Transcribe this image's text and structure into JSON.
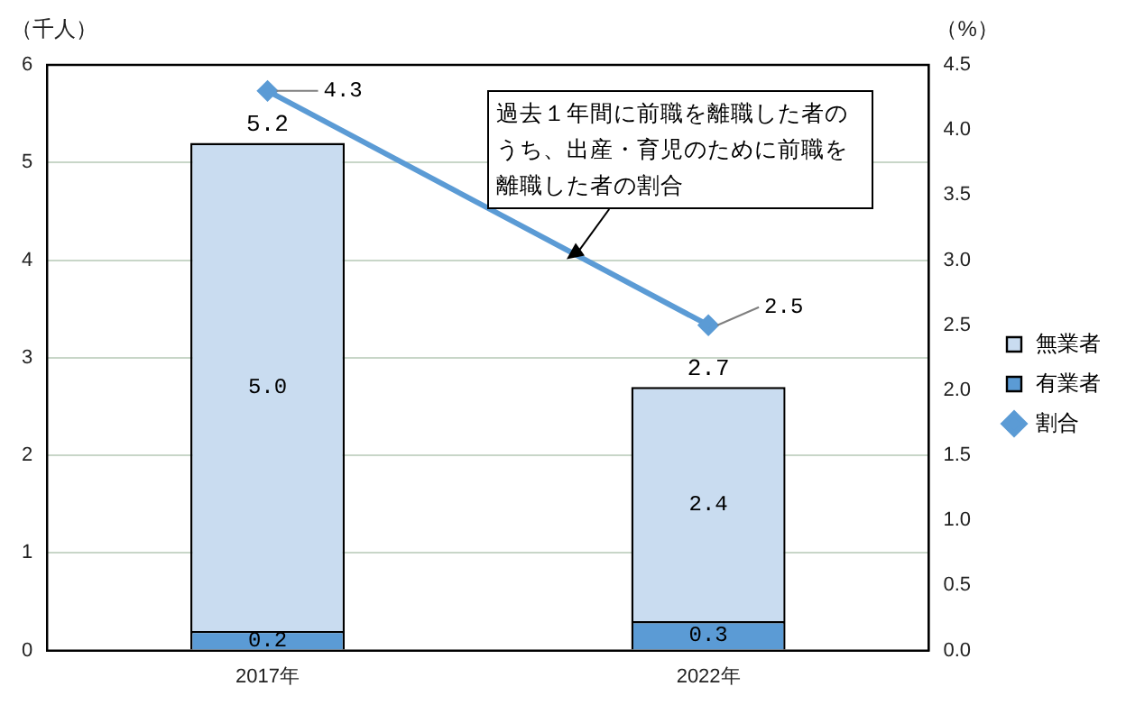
{
  "chart_data": {
    "type": "bar",
    "stacked": true,
    "categories": [
      "2017年",
      "2022年"
    ],
    "series": [
      {
        "name": "有業者",
        "color": "#5b9bd5",
        "values": [
          0.2,
          0.3
        ],
        "value_labels": [
          "0.2",
          "0.3"
        ]
      },
      {
        "name": "無業者",
        "color": "#c9dcf0",
        "values": [
          5.0,
          2.4
        ],
        "value_labels": [
          "5.0",
          "2.4"
        ]
      },
      {
        "name": "割合",
        "type": "line",
        "axis": "y2",
        "color": "#5b9bd5",
        "values": [
          4.3,
          2.5
        ],
        "value_labels": [
          "4.3",
          "2.5"
        ]
      }
    ],
    "ylabel": "（千人）",
    "y2label": "（%）",
    "ylim": [
      0,
      6
    ],
    "yticks": [
      0,
      1,
      2,
      3,
      4,
      5,
      6
    ],
    "y2lim": [
      0,
      4.5
    ],
    "y2ticks": [
      {
        "value": 0,
        "label": "0.0"
      },
      {
        "value": 0.5,
        "label": "0.5"
      },
      {
        "value": 1,
        "label": "1.0"
      },
      {
        "value": 1.5,
        "label": "1.5"
      },
      {
        "value": 2,
        "label": "2.0"
      },
      {
        "value": 2.5,
        "label": "2.5"
      },
      {
        "value": 3,
        "label": "3.0"
      },
      {
        "value": 3.5,
        "label": "3.5"
      },
      {
        "value": 4,
        "label": "4.0"
      },
      {
        "value": 4.5,
        "label": "4.5"
      }
    ],
    "grid": "y",
    "legend": "right",
    "marker": "diamond",
    "totals": [
      "5.2",
      "2.7"
    ],
    "annotations": [
      "過去１年間に前職を離職した者のうち、出産・育児のために前職を離職した者の割合"
    ]
  }
}
